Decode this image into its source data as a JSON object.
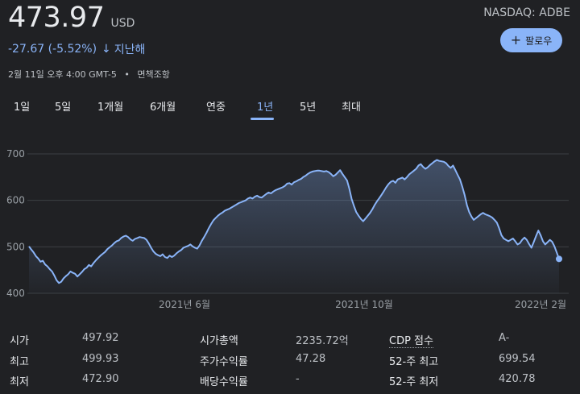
{
  "quote": {
    "price": "473.97",
    "currency": "USD",
    "ticker": "NASDAQ: ADBE",
    "change": "-27.67 (-5.52%)",
    "change_arrow": "↓",
    "change_period": "지난해",
    "date": "2월 11일 오후 4:00 GMT-5",
    "disclaimer": "면책조항",
    "follow_label": "팔로우",
    "follow_icon": "plus-icon",
    "accent_color": "#8ab4f8"
  },
  "tabs": [
    {
      "label": "1일"
    },
    {
      "label": "5일"
    },
    {
      "label": "1개월"
    },
    {
      "label": "6개월"
    },
    {
      "label": "연중"
    },
    {
      "label": "1년",
      "active": true
    },
    {
      "label": "5년"
    },
    {
      "label": "최대"
    }
  ],
  "chart_data": {
    "type": "area",
    "title": "",
    "xlabel": "",
    "ylabel": "",
    "ylim": [
      400,
      720
    ],
    "yticks": [
      400,
      500,
      600,
      700
    ],
    "ytick_labels": [
      "400",
      "500",
      "600",
      "700"
    ],
    "xtick_labels": [
      "2021년 6월",
      "2021년 10월",
      "2022년 2월"
    ],
    "grid": true,
    "line_color": "#8ab4f8",
    "series": [
      {
        "values": [
          501,
          494,
          488,
          480,
          475,
          468,
          470,
          462,
          458,
          452,
          447,
          438,
          428,
          422,
          425,
          432,
          437,
          441,
          447,
          444,
          442,
          436,
          441,
          446,
          452,
          455,
          461,
          458,
          465,
          471,
          476,
          481,
          485,
          489,
          495,
          499,
          503,
          508,
          512,
          514,
          519,
          522,
          524,
          521,
          516,
          513,
          517,
          519,
          521,
          520,
          519,
          515,
          507,
          498,
          490,
          485,
          482,
          480,
          484,
          478,
          476,
          481,
          478,
          481,
          486,
          490,
          493,
          498,
          500,
          502,
          505,
          501,
          498,
          496,
          503,
          513,
          521,
          530,
          540,
          549,
          557,
          562,
          567,
          571,
          574,
          578,
          580,
          582,
          585,
          588,
          591,
          594,
          596,
          598,
          600,
          604,
          606,
          604,
          608,
          610,
          607,
          606,
          610,
          614,
          617,
          615,
          619,
          622,
          624,
          626,
          628,
          631,
          636,
          637,
          634,
          639,
          641,
          644,
          646,
          650,
          653,
          657,
          660,
          662,
          663,
          664,
          664,
          663,
          662,
          663,
          661,
          657,
          652,
          655,
          660,
          665,
          657,
          650,
          643,
          625,
          603,
          588,
          575,
          567,
          560,
          555,
          561,
          567,
          573,
          581,
          590,
          598,
          605,
          612,
          620,
          628,
          635,
          640,
          642,
          638,
          645,
          647,
          649,
          645,
          650,
          656,
          660,
          664,
          668,
          675,
          678,
          672,
          668,
          671,
          676,
          680,
          684,
          687,
          685,
          684,
          683,
          680,
          674,
          670,
          675,
          665,
          655,
          645,
          630,
          612,
          590,
          575,
          565,
          558,
          562,
          566,
          570,
          573,
          570,
          568,
          566,
          563,
          558,
          552,
          540,
          525,
          518,
          515,
          512,
          515,
          518,
          512,
          505,
          508,
          515,
          520,
          515,
          506,
          498,
          510,
          523,
          535,
          525,
          512,
          505,
          510,
          515,
          511,
          501,
          488,
          473.97
        ]
      }
    ]
  },
  "stats": {
    "col1": [
      {
        "label": "시가",
        "value": "497.92"
      },
      {
        "label": "최고",
        "value": "499.93"
      },
      {
        "label": "최저",
        "value": "472.90"
      }
    ],
    "col2": [
      {
        "label": "시가총액",
        "value": "2235.72억"
      },
      {
        "label": "주가수익률",
        "value": "47.28"
      },
      {
        "label": "배당수익률",
        "value": "-"
      }
    ],
    "col3": [
      {
        "label": "CDP 점수",
        "value": "A-"
      },
      {
        "label": "52-주 최고",
        "value": "699.54"
      },
      {
        "label": "52-주 최저",
        "value": "420.78"
      }
    ]
  }
}
